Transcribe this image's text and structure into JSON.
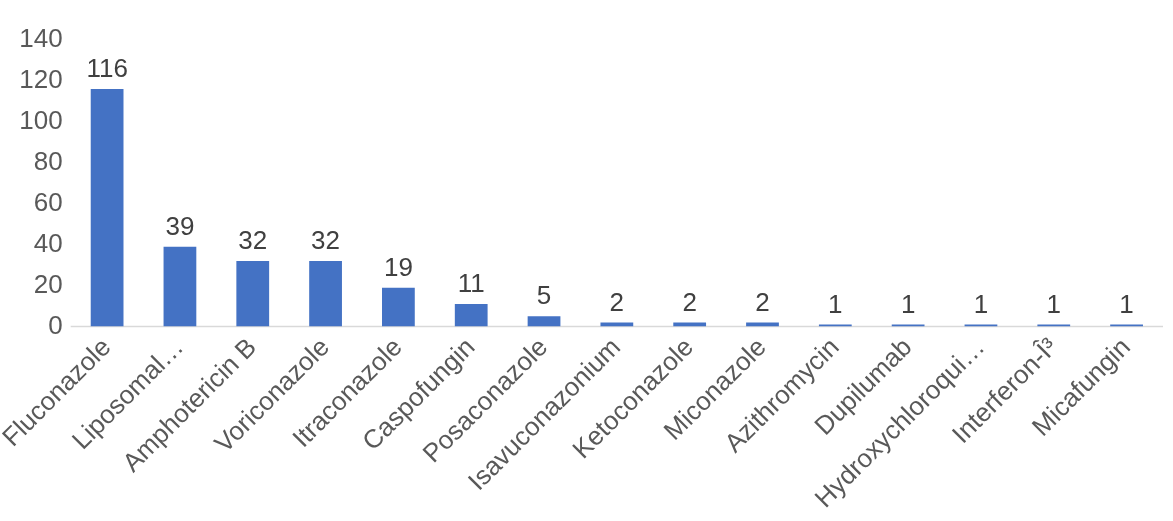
{
  "chart_data": {
    "type": "bar",
    "categories": [
      "Fluconazole",
      "Liposomal…",
      "Amphotericin B",
      "Voriconazole",
      "Itraconazole",
      "Caspofungin",
      "Posaconazole",
      "Isavuconazonium",
      "Ketoconazole",
      "Miconazole",
      "Azithromycin",
      "Dupilumab",
      "Hydroxychloroqui…",
      "Interferon-Î³",
      "Micafungin"
    ],
    "values": [
      116,
      39,
      32,
      32,
      19,
      11,
      5,
      2,
      2,
      2,
      1,
      1,
      1,
      1,
      1
    ],
    "color": "#4472c4",
    "ylim": [
      0,
      140
    ],
    "yticks": [
      0,
      20,
      40,
      60,
      80,
      100,
      120,
      140
    ],
    "grid": false,
    "legend": false,
    "data_labels": true
  }
}
